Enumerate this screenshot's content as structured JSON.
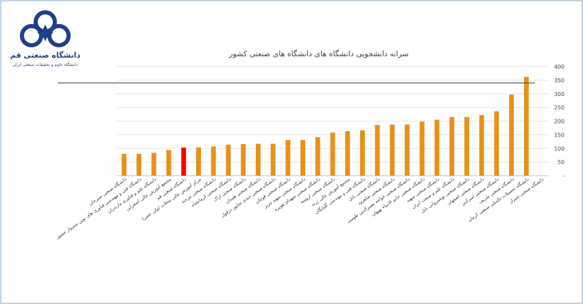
{
  "logo": {
    "line1": "دانشگاه صنعتی قم",
    "line2": "دانشگاه علوم و تحقیقات صنعتی ایران"
  },
  "colors": {
    "bar": "#E8911A",
    "highlight": "#FF0000",
    "grid": "#E4E4E4",
    "reference_line": "#333333",
    "frame": "#A8C4DC",
    "logo": "#1E3F8A"
  },
  "chart_data": {
    "type": "bar",
    "title": "سرانه دانشجویی دانشگاه های دانشگاه های صنعتی کشور",
    "ylim": [
      0,
      400
    ],
    "yticks": [
      0,
      50,
      100,
      150,
      200,
      250,
      300,
      350,
      400
    ],
    "ytick_labels": [
      "-",
      "50",
      "100",
      "150",
      "200",
      "250",
      "300",
      "350",
      "400"
    ],
    "grid": true,
    "reference_line": 340,
    "highlight_index": 4,
    "categories": [
      "دانشگاه صنعتی سیرجان",
      "دانشگاه فنی و مهندسی فناوری های نوین سبزوار حضور",
      "دانشگاه علم و فناوری مازندران",
      "مجتمع آموزش عالی اسفراین",
      "دانشگاه صنعتی قم",
      "مرکز آموزش عالی محلات (ولی عصر)",
      "دانشگاه صنعتی بیرجند",
      "دانشگاه صنعتی کرمانشاه",
      "دانشگاه صنعتی اراک",
      "دانشگاه صنعتی همدان",
      "دانشگاه صنعتی جندی شاپور دزفول",
      "دانشگاه صنعتی قوچان",
      "دانشگاه صنعتی سهند تبریز",
      "دانشگاه صنعتی شهدای هویزه",
      "دانشگاه صنعتی ارومیه",
      "مجتمع آموزش عالی زرند",
      "دانشگاه فنی و مهندسی گلپایگان",
      "دانشگاه صنعتی بابل",
      "دانشگاه صنعتی شاهرود",
      "دانشگاه صنعتی خواجه نصیرالدین طوسی",
      "دانشگاه صنعتی خاتم الانبیاء بهبهان",
      "دانشگاه صنعتی سهند",
      "دانشگاه علم و صنعت ایران",
      "دانشگاه صنعتی نوشیروانی بابل",
      "دانشگاه صنعتی اصفهان",
      "دانشگاه صنعتی امیرکبیر",
      "دانشگاه صنعتی شریف",
      "دانشگاه تحصیلات تکمیلی صنعتی کرمان",
      "دانشگاه صنعتی شیراز"
    ],
    "values": [
      80,
      80,
      84,
      94,
      103,
      104,
      107,
      114,
      116,
      117,
      117,
      131,
      131,
      141,
      158,
      163,
      166,
      186,
      187,
      188,
      198,
      205,
      215,
      215,
      222,
      236,
      297,
      362,
      0
    ]
  }
}
